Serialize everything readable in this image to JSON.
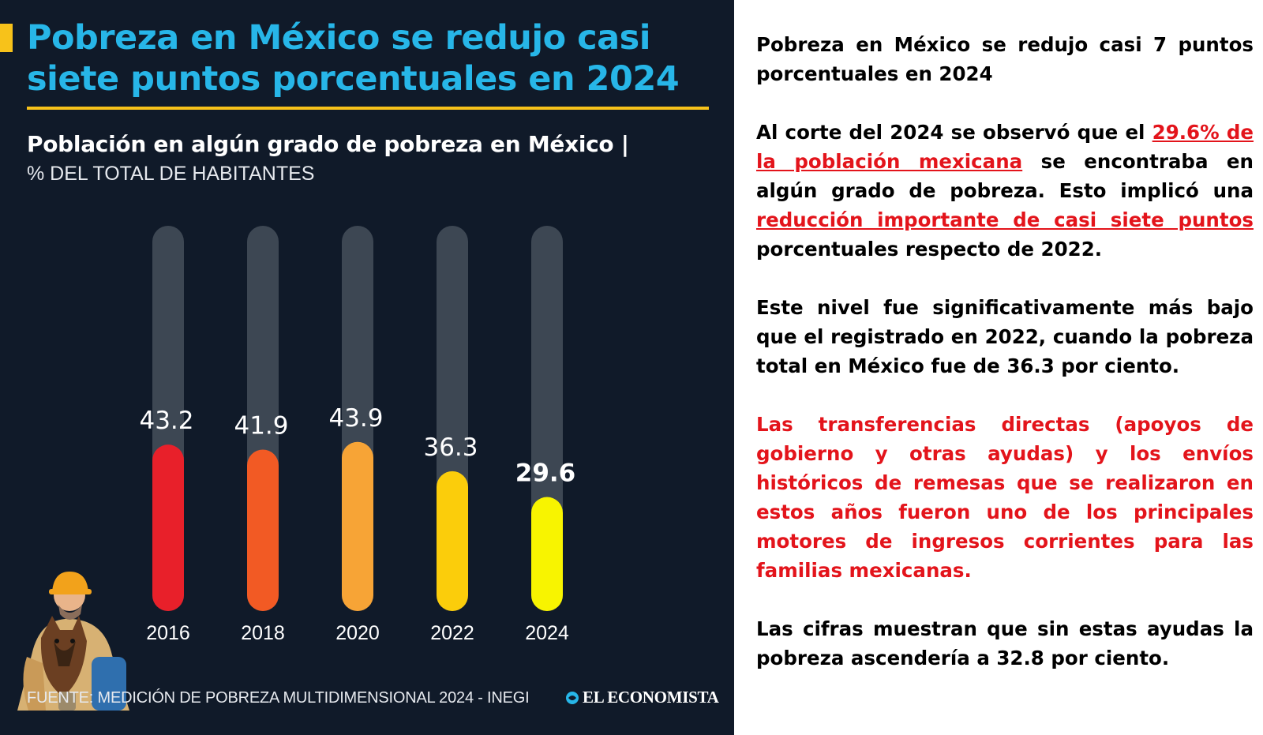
{
  "infographic": {
    "title": "Pobreza en México se redujo casi siete puntos porcentuales en 2024",
    "chart_heading": "Población en algún grado de pobreza  en México |",
    "chart_subheading": "% DEL TOTAL DE HABITANTES",
    "source": "FUENTE: MEDICIÓN DE POBREZA MULTIDIMENSIONAL 2024 - INEGI",
    "brand": "EL ECONOMISTA",
    "brand_icon": "economista-logo-icon",
    "illustration": "worker-with-dog-illustration",
    "colors": {
      "background": "#101a29",
      "title": "#27b6e8",
      "accent": "#f7c21a",
      "track": "#3d4753"
    }
  },
  "chart_data": {
    "type": "bar",
    "title": "Población en algún grado de pobreza  en México |",
    "subtitle": "% DEL TOTAL DE HABITANTES",
    "categories": [
      "2016",
      "2018",
      "2020",
      "2022",
      "2024"
    ],
    "values": [
      43.2,
      41.9,
      43.9,
      36.3,
      29.6
    ],
    "value_labels": [
      "43.2",
      "41.9",
      "43.9",
      "36.3",
      "29.6"
    ],
    "colors": [
      "#e8202a",
      "#f25a24",
      "#f7a436",
      "#fbcd0b",
      "#f8f400"
    ],
    "highlight_index": 4,
    "ylim": [
      0,
      100
    ],
    "grid": false,
    "legend": "none"
  },
  "text_panel": {
    "heading": "Pobreza en México se redujo casi 7 puntos porcentuales en 2024",
    "p1_a": "Al corte del 2024 se observó que el ",
    "p1_link1": "29.6% de la población mexicana",
    "p1_b": " se encontraba en algún grado de pobreza. Esto implicó una ",
    "p1_link2": "reducción importante de casi siete puntos",
    "p1_c": " porcentuales respecto de 2022.",
    "p2": "Este nivel fue significativamente más bajo que el registrado en 2022, cuando la pobreza total en México fue de 36.3 por ciento.",
    "p3": "Las transferencias directas (apoyos de gobierno y otras ayudas) y los envíos históricos de remesas que se realizaron en estos años fueron uno de los principales motores de ingresos corrientes para las familias mexicanas.",
    "p4": "Las cifras muestran que sin estas ayudas la pobreza ascendería a 32.8 por ciento."
  }
}
